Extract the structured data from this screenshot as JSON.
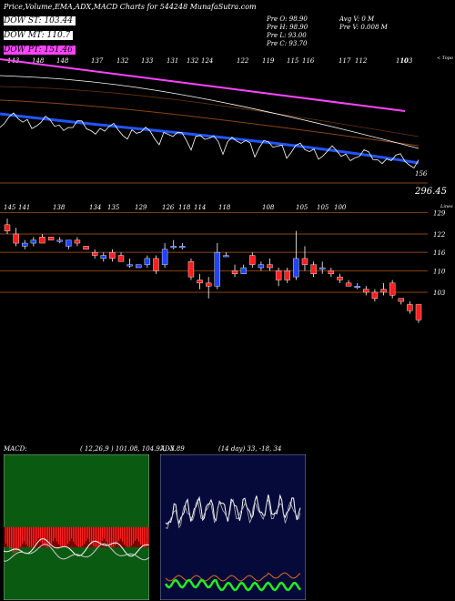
{
  "header": {
    "title": "Price,Volume,EMA,ADX,MACD Charts for 544248  MunafaSutra.com",
    "dow_st": "DOW ST: 103.44",
    "dow_mt": "DOW MT: 110.7",
    "dow_pt": "DOW PT: 151.46",
    "pre_o": "Pre  O: 98.90",
    "pre_h": "Pre  H: 98.90",
    "pre_l": "Pre  L: 93.00",
    "pre_c": "Pre  C: 93.70",
    "avg_v": "Avg V: 0  M",
    "pre_v": "Pre  V: 0.008  M"
  },
  "top_panel": {
    "top_labels": [
      "143",
      "148",
      "148",
      "137",
      "132",
      "133",
      "131",
      "132",
      "124",
      "122",
      "119",
      "115",
      "116",
      "117",
      "112",
      "110",
      "103"
    ],
    "price_label": "296.45",
    "corner_label": "< Topo",
    "right_tick": "156"
  },
  "price_panel": {
    "top_labels": [
      "145",
      "141",
      "138",
      "134",
      "135",
      "129",
      "126",
      "118",
      "114",
      "118",
      "108",
      "105",
      "105",
      "100"
    ],
    "yticks": [
      "129",
      "122",
      "116",
      "110",
      "103"
    ],
    "corner_label": "Lines"
  },
  "macd": {
    "label": "MACD:",
    "values": "( 12,26,9 ) 101.08,  104.97,  -3.89"
  },
  "adx": {
    "label": "ADX",
    "values": "(14  day) 33,  -18,  34"
  },
  "chart_data": {
    "type": "candlestick",
    "title": "Price,Volume,EMA,ADX,MACD Charts for 544248  MunafaSutra.com",
    "yticks": [
      129,
      122,
      116,
      110,
      103
    ],
    "candles": [
      {
        "o": 125,
        "h": 127,
        "l": 122,
        "c": 123
      },
      {
        "o": 122,
        "h": 124,
        "l": 118,
        "c": 119
      },
      {
        "o": 118,
        "h": 120,
        "l": 117,
        "c": 119
      },
      {
        "o": 119,
        "h": 121,
        "l": 118,
        "c": 120
      },
      {
        "o": 121,
        "h": 122,
        "l": 119,
        "c": 119
      },
      {
        "o": 121,
        "h": 121,
        "l": 120,
        "c": 120
      },
      {
        "o": 120,
        "h": 121,
        "l": 119,
        "c": 120
      },
      {
        "o": 118,
        "h": 120,
        "l": 117,
        "c": 120
      },
      {
        "o": 120,
        "h": 121,
        "l": 118,
        "c": 119
      },
      {
        "o": 118,
        "h": 118,
        "l": 117,
        "c": 117
      },
      {
        "o": 116,
        "h": 117,
        "l": 114,
        "c": 115
      },
      {
        "o": 114,
        "h": 116,
        "l": 113,
        "c": 115
      },
      {
        "o": 116,
        "h": 117,
        "l": 113,
        "c": 114
      },
      {
        "o": 115,
        "h": 116,
        "l": 113,
        "c": 113
      },
      {
        "o": 112,
        "h": 114,
        "l": 111,
        "c": 112
      },
      {
        "o": 111,
        "h": 112,
        "l": 111,
        "c": 112
      },
      {
        "o": 112,
        "h": 115,
        "l": 111,
        "c": 114
      },
      {
        "o": 114,
        "h": 115,
        "l": 109,
        "c": 110
      },
      {
        "o": 112,
        "h": 119,
        "l": 111,
        "c": 117
      },
      {
        "o": 118,
        "h": 120,
        "l": 117,
        "c": 118
      },
      {
        "o": 118,
        "h": 119,
        "l": 117,
        "c": 118
      },
      {
        "o": 113,
        "h": 114,
        "l": 107,
        "c": 108
      },
      {
        "o": 107,
        "h": 109,
        "l": 104,
        "c": 106
      },
      {
        "o": 106,
        "h": 108,
        "l": 101,
        "c": 105
      },
      {
        "o": 105,
        "h": 119,
        "l": 104,
        "c": 116
      },
      {
        "o": 115,
        "h": 116,
        "l": 115,
        "c": 115
      },
      {
        "o": 110,
        "h": 112,
        "l": 108,
        "c": 109
      },
      {
        "o": 109,
        "h": 112,
        "l": 109,
        "c": 111
      },
      {
        "o": 115,
        "h": 116,
        "l": 111,
        "c": 112
      },
      {
        "o": 111,
        "h": 113,
        "l": 110,
        "c": 112
      },
      {
        "o": 112,
        "h": 114,
        "l": 110,
        "c": 111
      },
      {
        "o": 110,
        "h": 111,
        "l": 105,
        "c": 107
      },
      {
        "o": 110,
        "h": 111,
        "l": 106,
        "c": 107
      },
      {
        "o": 108,
        "h": 123,
        "l": 107,
        "c": 114
      },
      {
        "o": 114,
        "h": 118,
        "l": 110,
        "c": 112
      },
      {
        "o": 112,
        "h": 113,
        "l": 108,
        "c": 109
      },
      {
        "o": 111,
        "h": 113,
        "l": 109,
        "c": 111
      },
      {
        "o": 110,
        "h": 111,
        "l": 108,
        "c": 109
      },
      {
        "o": 108,
        "h": 109,
        "l": 106,
        "c": 107
      },
      {
        "o": 106,
        "h": 107,
        "l": 105,
        "c": 105
      },
      {
        "o": 105,
        "h": 106,
        "l": 104,
        "c": 105
      },
      {
        "o": 104,
        "h": 105,
        "l": 102,
        "c": 103
      },
      {
        "o": 103,
        "h": 104,
        "l": 100,
        "c": 101
      },
      {
        "o": 104,
        "h": 106,
        "l": 102,
        "c": 103
      },
      {
        "o": 106,
        "h": 107,
        "l": 101,
        "c": 102
      },
      {
        "o": 101,
        "h": 101,
        "l": 99,
        "c": 100
      },
      {
        "o": 99,
        "h": 100,
        "l": 96,
        "c": 97
      },
      {
        "o": 99,
        "h": 99,
        "l": 93,
        "c": 94
      }
    ],
    "ema_pink": [
      144,
      141,
      137,
      133
    ],
    "macd": {
      "macd": 101.08,
      "signal": 104.97,
      "hist": -3.89
    },
    "adx": {
      "period_days": 14,
      "values": [
        33,
        -18,
        34
      ]
    },
    "colors": {
      "up": "#1f44ff",
      "down": "#ff1e1e",
      "ema_pink": "#ff44ff",
      "ema_blue": "#2255ff",
      "macd_bg": "#0b5a12",
      "adx_bg": "#050a3a"
    }
  }
}
